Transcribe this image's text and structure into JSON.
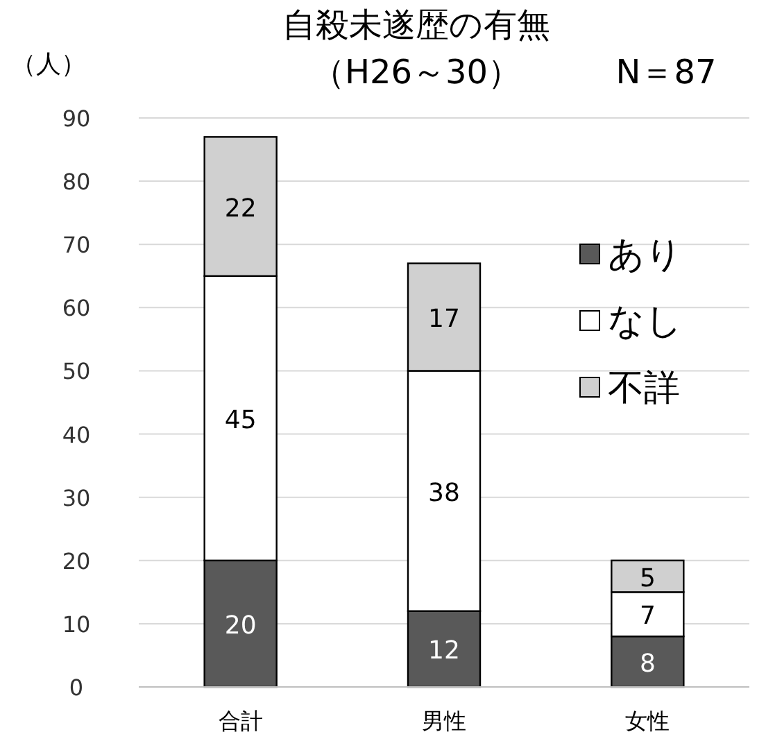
{
  "chart_data": {
    "type": "bar",
    "stacked": true,
    "title": "自殺未遂歴の有無",
    "subtitle": "（H26～30）",
    "ylabel": "（人）",
    "annotations": [
      "N＝87"
    ],
    "categories": [
      "合計",
      "男性",
      "女性"
    ],
    "series": [
      {
        "name": "あり",
        "color": "#595959",
        "values": [
          20,
          12,
          8
        ]
      },
      {
        "name": "なし",
        "color": "#ffffff",
        "values": [
          45,
          38,
          7
        ]
      },
      {
        "name": "不詳",
        "color": "#d0d0d0",
        "values": [
          22,
          17,
          5
        ]
      }
    ],
    "ylim": [
      0,
      90
    ],
    "yticks": [
      0,
      10,
      20,
      30,
      40,
      50,
      60,
      70,
      80,
      90
    ],
    "grid": "y",
    "legend": "right",
    "data_labels": true
  }
}
